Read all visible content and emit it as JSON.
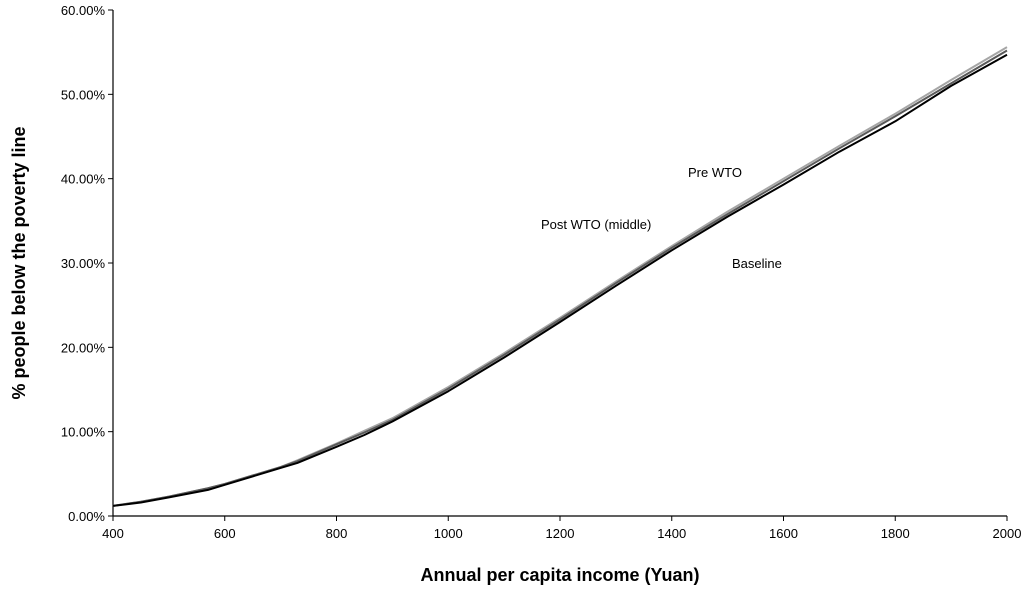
{
  "chart_data": {
    "type": "line",
    "title": "",
    "xlabel": "Annual per capita income (Yuan)",
    "ylabel": "% people below the poverty line",
    "xlim": [
      400,
      2000
    ],
    "ylim": [
      0,
      60
    ],
    "x_ticks": [
      400,
      600,
      800,
      1000,
      1200,
      1400,
      1600,
      1800,
      2000
    ],
    "x_tick_labels": [
      "400",
      "600",
      "800",
      "1000",
      "1200",
      "1400",
      "1600",
      "1800",
      "2000"
    ],
    "y_ticks": [
      0,
      10,
      20,
      30,
      40,
      50,
      60
    ],
    "y_tick_labels": [
      "0.00%",
      "10.00%",
      "20.00%",
      "30.00%",
      "40.00%",
      "50.00%",
      "60.00%"
    ],
    "grid": false,
    "x": [
      400,
      450,
      500,
      570,
      600,
      650,
      700,
      730,
      800,
      850,
      900,
      1000,
      1100,
      1200,
      1300,
      1400,
      1500,
      1600,
      1700,
      1800,
      1900,
      2000
    ],
    "series": [
      {
        "name": "Baseline",
        "color": "#000000",
        "values": [
          1.2,
          1.6,
          2.2,
          3.1,
          3.7,
          4.7,
          5.7,
          6.3,
          8.2,
          9.6,
          11.2,
          14.8,
          18.8,
          23.0,
          27.3,
          31.5,
          35.5,
          39.3,
          43.2,
          46.8,
          51.0,
          54.7
        ]
      },
      {
        "name": "Pre WTO",
        "color": "#a6a6a6",
        "values": [
          1.2,
          1.7,
          2.3,
          3.3,
          3.8,
          4.8,
          5.8,
          6.6,
          8.6,
          10.1,
          11.6,
          15.3,
          19.3,
          23.5,
          27.8,
          32.0,
          36.1,
          40.0,
          43.9,
          47.7,
          51.7,
          55.6
        ]
      },
      {
        "name": "Post WTO (middle)",
        "color": "#595959",
        "values": [
          1.2,
          1.7,
          2.3,
          3.3,
          3.8,
          4.8,
          5.8,
          6.5,
          8.5,
          9.9,
          11.4,
          15.1,
          19.1,
          23.3,
          27.6,
          31.8,
          35.8,
          39.7,
          43.6,
          47.4,
          51.3,
          55.2
        ]
      }
    ],
    "annotations": [
      {
        "text": "Pre WTO",
        "series": "Pre WTO"
      },
      {
        "text": "Post WTO (middle)",
        "series": "Post WTO (middle)"
      },
      {
        "text": "Baseline",
        "series": "Baseline"
      }
    ]
  }
}
